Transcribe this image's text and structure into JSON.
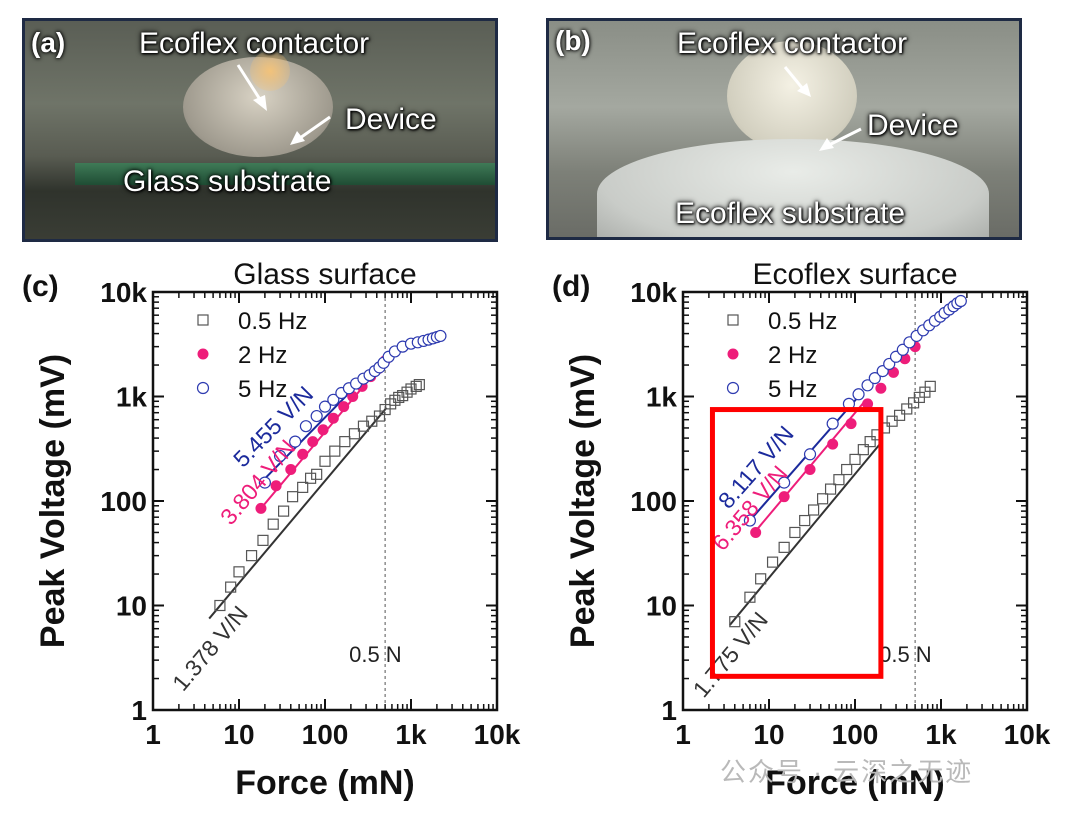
{
  "photos": [
    {
      "panel_label": "(a)",
      "labels": {
        "contactor": "Ecoflex contactor",
        "device": "Device",
        "substrate": "Glass substrate"
      }
    },
    {
      "panel_label": "(b)",
      "labels": {
        "contactor": "Ecoflex contactor",
        "device": "Device",
        "substrate": "Ecoflex substrate"
      }
    }
  ],
  "chart_data": [
    {
      "panel_label": "(c)",
      "type": "scatter",
      "title": "Glass surface",
      "xlabel": "Force (mN)",
      "ylabel": "Peak  Voltage (mV)",
      "xscale": "log",
      "yscale": "log",
      "xlim": [
        1,
        10000
      ],
      "ylim": [
        1,
        10000
      ],
      "xticks": [
        {
          "v": 1,
          "label": "1"
        },
        {
          "v": 10,
          "label": "10"
        },
        {
          "v": 100,
          "label": "100"
        },
        {
          "v": 1000,
          "label": "1k"
        },
        {
          "v": 10000,
          "label": "10k"
        }
      ],
      "yticks": [
        {
          "v": 1,
          "label": "1"
        },
        {
          "v": 10,
          "label": "10"
        },
        {
          "v": 100,
          "label": "100"
        },
        {
          "v": 1000,
          "label": "1k"
        },
        {
          "v": 10000,
          "label": "10k"
        }
      ],
      "legend_position": "top-left",
      "series": [
        {
          "name": "0.5 Hz",
          "color": "#555555",
          "marker": "square-open",
          "x": [
            6,
            8,
            10,
            14,
            19,
            25,
            33,
            42,
            55,
            68,
            80,
            100,
            130,
            170,
            220,
            280,
            350,
            430,
            500,
            580,
            650,
            720,
            800,
            900,
            1000,
            1150,
            1250
          ],
          "y": [
            10,
            15,
            21,
            30,
            42,
            60,
            80,
            110,
            135,
            165,
            180,
            240,
            300,
            370,
            440,
            520,
            580,
            650,
            750,
            850,
            920,
            980,
            1020,
            1100,
            1180,
            1250,
            1300
          ]
        },
        {
          "name": "2 Hz",
          "color": "#ee1d7a",
          "marker": "circle-filled",
          "x": [
            18,
            27,
            40,
            55,
            72,
            95,
            125,
            165,
            210,
            270,
            340,
            420,
            500
          ],
          "y": [
            85,
            140,
            200,
            280,
            370,
            480,
            620,
            800,
            1000,
            1250,
            1550,
            1850,
            2200
          ]
        },
        {
          "name": "5 Hz",
          "color": "#2e3bb0",
          "marker": "circle-open",
          "x": [
            20,
            30,
            45,
            60,
            80,
            100,
            125,
            155,
            190,
            230,
            280,
            330,
            380,
            430,
            480,
            550,
            650,
            800,
            1000,
            1200,
            1400,
            1600,
            1800,
            2000,
            2200
          ],
          "y": [
            150,
            270,
            370,
            520,
            650,
            800,
            930,
            1080,
            1200,
            1330,
            1480,
            1600,
            1750,
            1900,
            2100,
            2400,
            2700,
            3000,
            3200,
            3300,
            3400,
            3500,
            3600,
            3700,
            3800
          ]
        }
      ],
      "fits": [
        {
          "label": "1.378 V/N",
          "color": "#333333",
          "x": [
            4.5,
            520
          ],
          "y": [
            7.5,
            780
          ]
        },
        {
          "label": "3.804 V/N",
          "color": "#ee1d7a",
          "x": [
            18,
            520
          ],
          "y": [
            85,
            2300
          ]
        },
        {
          "label": "5.455 V/N",
          "color": "#1b2a9c",
          "x": [
            18,
            520
          ],
          "y": [
            150,
            2500
          ]
        }
      ],
      "reference_line": {
        "x": 500,
        "label": "0.5 N"
      }
    },
    {
      "panel_label": "(d)",
      "type": "scatter",
      "title": "Ecoflex surface",
      "xlabel": "Force (mN)",
      "ylabel": "Peak  Voltage (mV)",
      "xscale": "log",
      "yscale": "log",
      "xlim": [
        1,
        10000
      ],
      "ylim": [
        1,
        10000
      ],
      "xticks": [
        {
          "v": 1,
          "label": "1"
        },
        {
          "v": 10,
          "label": "10"
        },
        {
          "v": 100,
          "label": "100"
        },
        {
          "v": 1000,
          "label": "1k"
        },
        {
          "v": 10000,
          "label": "10k"
        }
      ],
      "yticks": [
        {
          "v": 1,
          "label": "1"
        },
        {
          "v": 10,
          "label": "10"
        },
        {
          "v": 100,
          "label": "100"
        },
        {
          "v": 1000,
          "label": "1k"
        },
        {
          "v": 10000,
          "label": "10k"
        }
      ],
      "legend_position": "top-left",
      "series": [
        {
          "name": "0.5 Hz",
          "color": "#555555",
          "marker": "square-open",
          "x": [
            4,
            6,
            8,
            11,
            15,
            20,
            26,
            33,
            42,
            52,
            65,
            80,
            100,
            125,
            150,
            180,
            220,
            270,
            330,
            400,
            480,
            560,
            650,
            750
          ],
          "y": [
            7,
            12,
            18,
            26,
            36,
            50,
            65,
            82,
            105,
            130,
            160,
            200,
            250,
            310,
            370,
            430,
            500,
            580,
            660,
            760,
            870,
            980,
            1100,
            1250
          ]
        },
        {
          "name": "2 Hz",
          "color": "#ee1d7a",
          "marker": "circle-filled",
          "x": [
            7,
            15,
            30,
            55,
            90,
            140,
            200,
            280,
            380,
            500
          ],
          "y": [
            50,
            110,
            200,
            350,
            550,
            850,
            1200,
            1700,
            2300,
            3000
          ]
        },
        {
          "name": "5 Hz",
          "color": "#2e3bb0",
          "marker": "circle-open",
          "x": [
            6,
            15,
            30,
            55,
            85,
            110,
            140,
            170,
            210,
            250,
            300,
            360,
            430,
            520,
            620,
            730,
            850,
            980,
            1100,
            1250,
            1400,
            1550,
            1700
          ],
          "y": [
            65,
            150,
            280,
            550,
            850,
            1050,
            1280,
            1500,
            1750,
            2050,
            2400,
            2800,
            3300,
            3800,
            4300,
            4800,
            5300,
            5800,
            6300,
            6800,
            7300,
            7800,
            8200
          ]
        }
      ],
      "fits": [
        {
          "label": "1.775 V/N",
          "color": "#333333",
          "x": [
            3.5,
            200
          ],
          "y": [
            6.5,
            360
          ]
        },
        {
          "label": "6.358 V/N",
          "color": "#ee1d7a",
          "x": [
            6.5,
            130
          ],
          "y": [
            48,
            900
          ]
        },
        {
          "label": "8.117 V/N",
          "color": "#1b2a9c",
          "x": [
            5.5,
            110
          ],
          "y": [
            60,
            1000
          ]
        }
      ],
      "reference_line": {
        "x": 500,
        "label": "0.5 N"
      },
      "highlight_box": {
        "x": [
          2.2,
          200
        ],
        "y": [
          2.1,
          750
        ],
        "color": "#ff0000"
      }
    }
  ],
  "watermark": "公众号 · 云深之无迹"
}
